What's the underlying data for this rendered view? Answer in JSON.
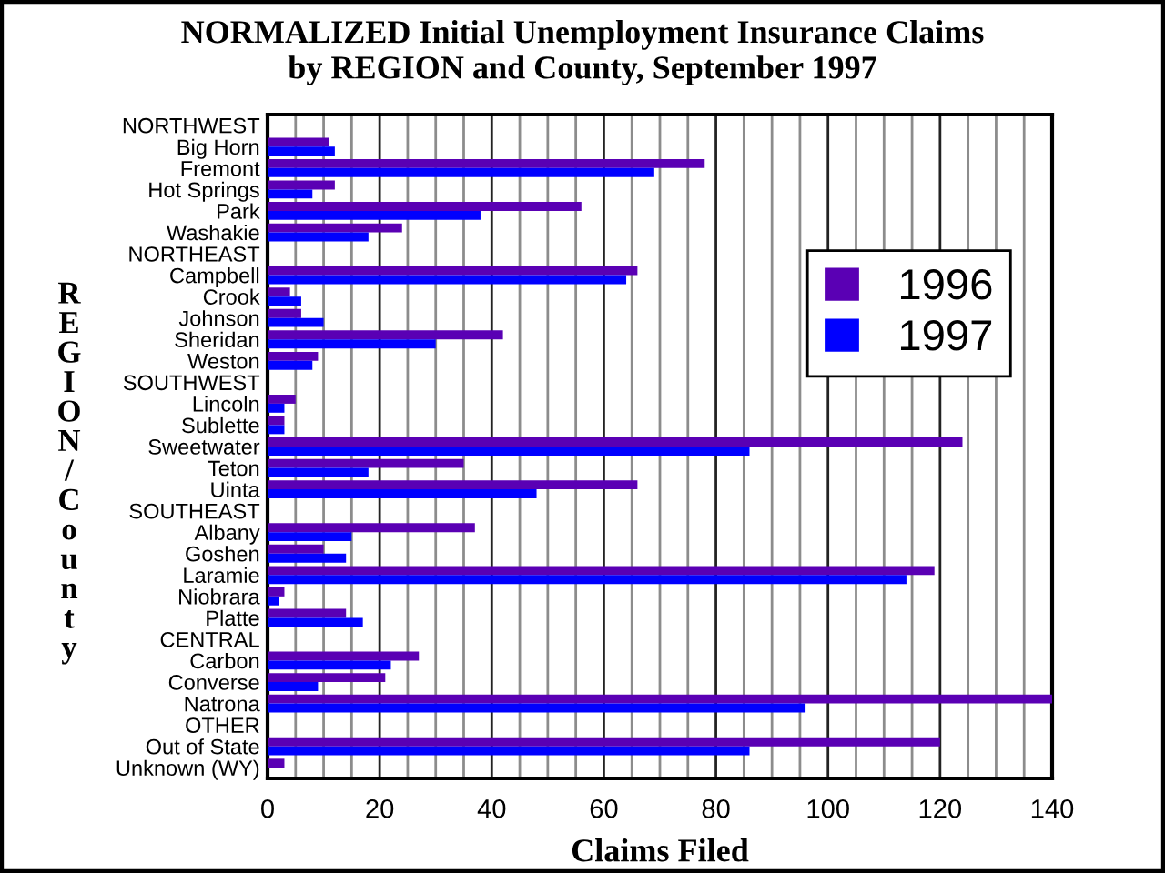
{
  "chart_data": {
    "type": "bar",
    "orientation": "horizontal",
    "title": "NORMALIZED Initial Unemployment Insurance Claims\nby REGION and County, September 1997",
    "xlabel": "Claims Filed",
    "ylabel": "REGION/County",
    "categories": [
      "NORTHWEST",
      "Big Horn",
      "Fremont",
      "Hot Springs",
      "Park",
      "Washakie",
      "NORTHEAST",
      "Campbell",
      "Crook",
      "Johnson",
      "Sheridan",
      "Weston",
      "SOUTHWEST",
      "Lincoln",
      "Sublette",
      "Sweetwater",
      "Teton",
      "Uinta",
      "SOUTHEAST",
      "Albany",
      "Goshen",
      "Laramie",
      "Niobrara",
      "Platte",
      "CENTRAL",
      "Carbon",
      "Converse",
      "Natrona",
      "OTHER",
      "Out of State",
      "Unknown (WY)"
    ],
    "series": [
      {
        "name": "1996",
        "color": "#5a00b4",
        "values": [
          null,
          11,
          78,
          12,
          56,
          24,
          null,
          66,
          4,
          6,
          42,
          9,
          null,
          5,
          3,
          124,
          35,
          66,
          null,
          37,
          10,
          119,
          3,
          14,
          null,
          27,
          21,
          140,
          null,
          120,
          3
        ]
      },
      {
        "name": "1997",
        "color": "#0000ff",
        "values": [
          null,
          12,
          69,
          8,
          38,
          18,
          null,
          64,
          6,
          10,
          30,
          8,
          null,
          3,
          3,
          86,
          18,
          48,
          null,
          15,
          14,
          114,
          2,
          17,
          null,
          22,
          9,
          96,
          null,
          86,
          0
        ]
      }
    ],
    "xlim": [
      0,
      140
    ],
    "xticks": [
      0,
      {
        "value": 5,
        "label": null
      },
      {
        "value": 10,
        "label": null
      },
      {
        "value": 15,
        "label": null
      },
      20,
      {
        "value": 25,
        "label": null
      },
      {
        "value": 30,
        "label": null
      },
      {
        "value": 35,
        "label": null
      },
      40,
      {
        "value": 45,
        "label": null
      },
      {
        "value": 50,
        "label": null
      },
      {
        "value": 55,
        "label": null
      },
      60,
      {
        "value": 65,
        "label": null
      },
      {
        "value": 70,
        "label": null
      },
      {
        "value": 75,
        "label": null
      },
      80,
      {
        "value": 85,
        "label": null
      },
      {
        "value": 90,
        "label": null
      },
      {
        "value": 95,
        "label": null
      },
      100,
      {
        "value": 105,
        "label": null
      },
      {
        "value": 110,
        "label": null
      },
      {
        "value": 115,
        "label": null
      },
      120,
      {
        "value": 125,
        "label": null
      },
      {
        "value": 130,
        "label": null
      },
      {
        "value": 135,
        "label": null
      },
      140
    ],
    "grid": "x",
    "legend": "right"
  }
}
